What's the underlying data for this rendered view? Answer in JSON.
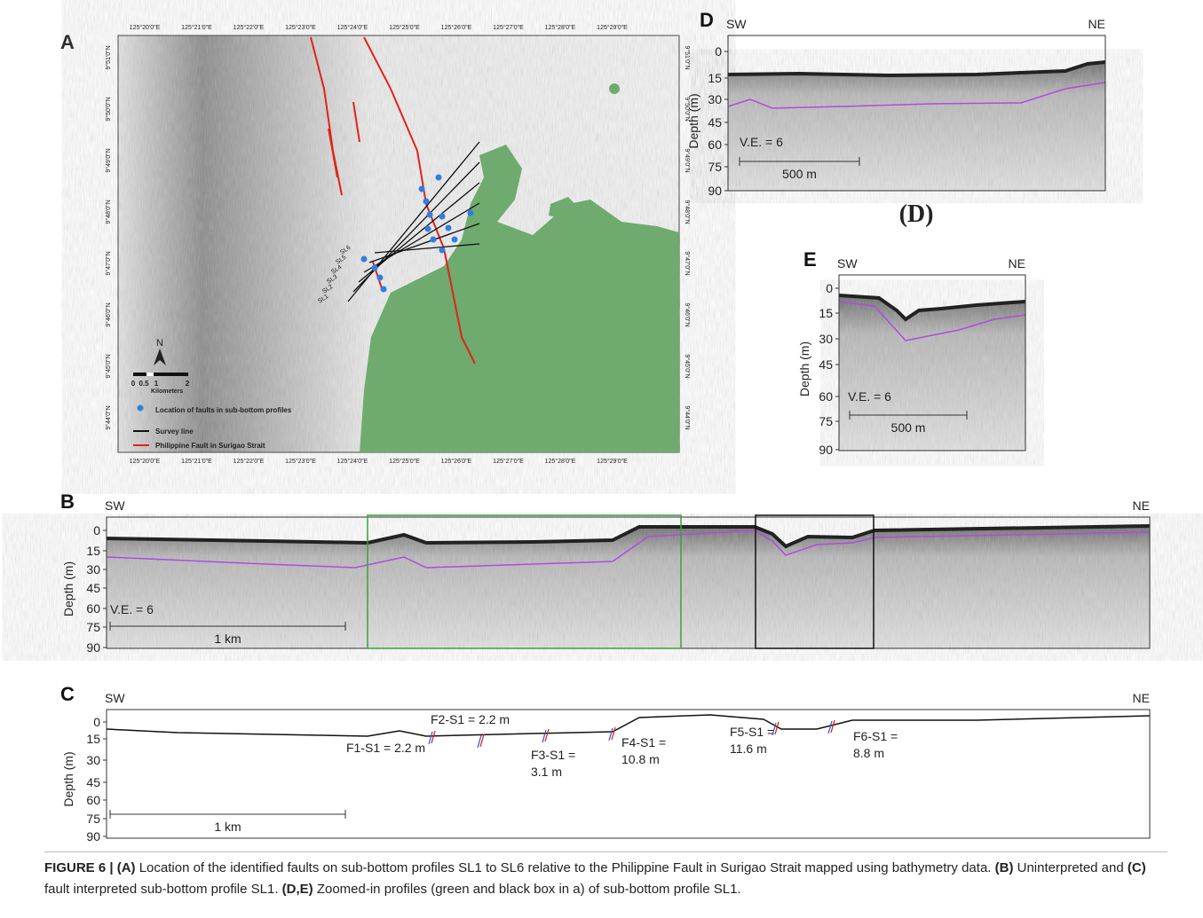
{
  "panel_a": {
    "label": "A",
    "lon_top": [
      "125°20'0\"E",
      "125°21'0\"E",
      "125°22'0\"E",
      "125°23'0\"E",
      "125°24'0\"E",
      "125°25'0\"E",
      "125°26'0\"E",
      "125°27'0\"E",
      "125°28'0\"E",
      "125°29'0\"E"
    ],
    "lon_bottom": [
      "125°20'0\"E",
      "125°21'0\"E",
      "125°22'0\"E",
      "125°23'0\"E",
      "125°24'0\"E",
      "125°25'0\"E",
      "125°26'0\"E",
      "125°27'0\"E",
      "125°28'0\"E",
      "125°29'0\"E"
    ],
    "lat_left": [
      "9°51'0\"N",
      "9°50'0\"N",
      "9°49'0\"N",
      "9°48'0\"N",
      "9°47'0\"N",
      "9°46'0\"N",
      "9°45'0\"N",
      "9°44'0\"N"
    ],
    "lat_right": [
      "9°51'0\"N",
      "9°50'0\"N",
      "9°49'0\"N",
      "9°48'0\"N",
      "9°47'0\"N",
      "9°46'0\"N",
      "9°45'0\"N",
      "9°44'0\"N"
    ],
    "survey_lines": [
      "SL6",
      "SL5",
      "SL4",
      "SL3",
      "SL2",
      "SL1"
    ],
    "north": "N",
    "scale_ticks": [
      "0",
      "0.5",
      "1",
      "2"
    ],
    "scale_unit": "Kilometers",
    "legend": [
      "Location of faults in sub-bottom profiles",
      "Survey line",
      "Philippine Fault in Surigao Strait"
    ]
  },
  "panel_b": {
    "label": "B",
    "left": "SW",
    "right": "NE",
    "axis_title": "Depth (m)",
    "ticks": [
      "0",
      "15",
      "30",
      "45",
      "60",
      "75",
      "90"
    ],
    "ve": "V.E. = 6",
    "scale": "1 km"
  },
  "panel_c": {
    "label": "C",
    "left": "SW",
    "right": "NE",
    "axis_title": "Depth (m)",
    "ticks": [
      "0",
      "15",
      "30",
      "45",
      "60",
      "75",
      "90"
    ],
    "scale": "1 km",
    "faults": [
      [
        "F1-S1 = 2.2 m"
      ],
      [
        "F2-S1 = 2.2 m"
      ],
      [
        "F3-S1 =",
        "3.1 m"
      ],
      [
        "F4-S1 =",
        "10.8 m"
      ],
      [
        "F5-S1 =",
        "11.6 m"
      ],
      [
        "F6-S1 =",
        "8.8 m"
      ]
    ]
  },
  "panel_d": {
    "label": "D",
    "left": "SW",
    "right": "NE",
    "axis_title": "Depth (m)",
    "ticks": [
      "0",
      "15",
      "30",
      "45",
      "60",
      "75",
      "90"
    ],
    "ve": "V.E. = 6",
    "scale": "500 m",
    "caption": "(D)"
  },
  "panel_e": {
    "label": "E",
    "left": "SW",
    "right": "NE",
    "axis_title": "Depth (m)",
    "ticks": [
      "0",
      "15",
      "30",
      "45",
      "60",
      "75",
      "90"
    ],
    "ve": "V.E. = 6",
    "scale": "500 m"
  },
  "caption": [
    {
      "text": "FIGURE 6 | (A)",
      "bold": true
    },
    {
      "text": " Location of the identified faults on sub-bottom profiles SL1 to SL6 relative to the Philippine Fault in Surigao Strait mapped using bathymetry data. ",
      "bold": false
    },
    {
      "text": "(B)",
      "bold": true
    },
    {
      "text": " Uninterpreted and ",
      "bold": false
    },
    {
      "text": "(C)",
      "bold": true
    },
    {
      "text": " fault interpreted sub-bottom profile SL1. ",
      "bold": false
    },
    {
      "text": "(D,E)",
      "bold": true
    },
    {
      "text": " Zoomed-in profiles (green and black box in a) of sub-bottom profile SL1.",
      "bold": false
    }
  ]
}
